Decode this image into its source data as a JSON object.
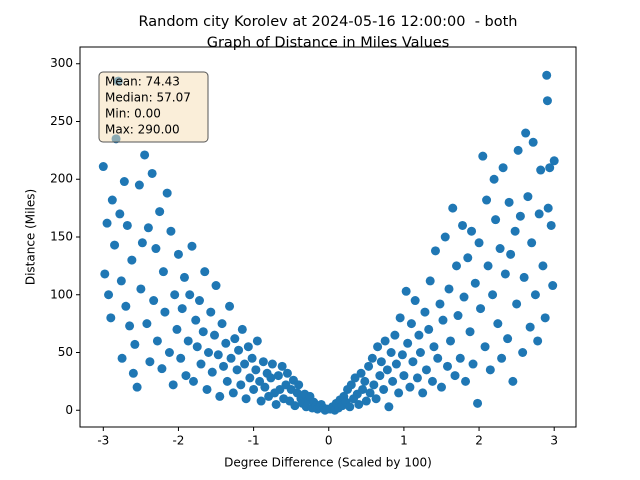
{
  "chart_data": {
    "type": "scatter",
    "title": "Random city Korolev at 2024-05-16 12:00:00  - both",
    "subtitle": "Graph of Distance in Miles Values",
    "x_label": "Degree Difference (Scaled by 100)",
    "y_label": "Distance (Miles)",
    "annotations": [
      "Mean: 74.43",
      "Median: 57.07",
      "Min: 0.00",
      "Max: 290.00"
    ],
    "color": "#1f77b4",
    "xlim": [
      -3.31,
      3.29
    ],
    "ylim": [
      -14.5,
      314.5
    ],
    "xticks": [
      -3,
      -2,
      -1,
      0,
      1,
      2,
      3
    ],
    "yticks": [
      0,
      50,
      100,
      150,
      200,
      250,
      300
    ],
    "grid": false,
    "x": [
      -3,
      -2.98,
      -2.95,
      -2.93,
      -2.9,
      -2.88,
      -2.85,
      -2.83,
      -2.8,
      -2.78,
      -2.76,
      -2.75,
      -2.72,
      -2.7,
      -2.68,
      -2.65,
      -2.62,
      -2.6,
      -2.58,
      -2.55,
      -2.52,
      -2.5,
      -2.48,
      -2.45,
      -2.42,
      -2.4,
      -2.38,
      -2.35,
      -2.33,
      -2.3,
      -2.28,
      -2.25,
      -2.22,
      -2.2,
      -2.18,
      -2.15,
      -2.12,
      -2.1,
      -2.07,
      -2.05,
      -2.02,
      -2.0,
      -1.97,
      -1.95,
      -1.92,
      -1.9,
      -1.87,
      -1.85,
      -1.82,
      -1.8,
      -1.77,
      -1.75,
      -1.72,
      -1.7,
      -1.67,
      -1.65,
      -1.62,
      -1.6,
      -1.57,
      -1.55,
      -1.52,
      -1.5,
      -1.47,
      -1.45,
      -1.42,
      -1.4,
      -1.37,
      -1.35,
      -1.32,
      -1.3,
      -1.27,
      -1.25,
      -1.22,
      -1.2,
      -1.17,
      -1.15,
      -1.12,
      -1.1,
      -1.07,
      -1.05,
      -1.02,
      -1.0,
      -0.97,
      -0.95,
      -0.92,
      -0.9,
      -0.87,
      -0.85,
      -0.82,
      -0.8,
      -0.77,
      -0.75,
      -0.72,
      -0.7,
      -0.67,
      -0.65,
      -0.62,
      -0.6,
      -0.57,
      -0.55,
      -0.52,
      -0.5,
      -0.47,
      -0.45,
      -0.42,
      -0.4,
      -0.37,
      -0.35,
      -0.32,
      -0.3,
      -0.27,
      -0.25,
      -0.22,
      -0.2,
      -0.17,
      -0.15,
      -0.12,
      -0.1,
      -0.07,
      -0.05,
      -0.02,
      0.02,
      0.05,
      0.08,
      0.1,
      0.13,
      0.15,
      0.18,
      0.2,
      0.23,
      0.25,
      0.28,
      0.3,
      0.33,
      0.35,
      0.38,
      0.4,
      0.43,
      0.45,
      0.48,
      0.5,
      0.53,
      0.55,
      0.58,
      0.6,
      0.63,
      0.65,
      0.68,
      0.7,
      0.73,
      0.75,
      0.78,
      0.8,
      0.83,
      0.85,
      0.88,
      0.9,
      0.93,
      0.95,
      0.98,
      1.0,
      1.03,
      1.05,
      1.08,
      1.1,
      1.12,
      1.15,
      1.18,
      1.2,
      1.22,
      1.25,
      1.28,
      1.3,
      1.33,
      1.35,
      1.38,
      1.4,
      1.42,
      1.45,
      1.48,
      1.5,
      1.52,
      1.55,
      1.58,
      1.6,
      1.62,
      1.65,
      1.68,
      1.7,
      1.72,
      1.75,
      1.78,
      1.8,
      1.82,
      1.85,
      1.88,
      1.9,
      1.92,
      1.95,
      1.98,
      2.0,
      2.02,
      2.05,
      2.08,
      2.1,
      2.12,
      2.15,
      2.18,
      2.2,
      2.22,
      2.25,
      2.28,
      2.3,
      2.32,
      2.35,
      2.38,
      2.4,
      2.42,
      2.45,
      2.48,
      2.5,
      2.52,
      2.55,
      2.58,
      2.6,
      2.62,
      2.65,
      2.68,
      2.7,
      2.72,
      2.75,
      2.78,
      2.8,
      2.82,
      2.85,
      2.88,
      2.9,
      2.91,
      2.92,
      2.94,
      2.96,
      2.98,
      3.0
    ],
    "y": [
      211,
      118,
      162,
      100,
      80,
      182,
      143,
      235,
      285,
      170,
      112,
      45,
      198,
      90,
      160,
      73,
      130,
      32,
      57,
      20,
      195,
      105,
      145,
      221,
      75,
      158,
      42,
      205,
      95,
      140,
      60,
      172,
      36,
      120,
      85,
      188,
      50,
      155,
      22,
      100,
      70,
      135,
      45,
      88,
      115,
      30,
      60,
      100,
      142,
      25,
      78,
      55,
      95,
      40,
      68,
      120,
      18,
      50,
      85,
      33,
      65,
      108,
      48,
      12,
      75,
      38,
      58,
      25,
      90,
      45,
      15,
      62,
      35,
      52,
      22,
      70,
      40,
      10,
      55,
      28,
      45,
      18,
      35,
      60,
      25,
      8,
      42,
      20,
      32,
      12,
      28,
      40,
      15,
      5,
      30,
      18,
      38,
      10,
      22,
      32,
      8,
      18,
      26,
      4,
      15,
      22,
      10,
      6,
      14,
      3,
      9,
      12,
      2,
      7,
      4,
      1,
      3,
      5,
      2,
      0,
      1,
      1,
      3,
      0,
      6,
      2,
      9,
      4,
      12,
      7,
      18,
      3,
      22,
      10,
      28,
      14,
      5,
      32,
      18,
      25,
      8,
      38,
      15,
      45,
      22,
      10,
      55,
      30,
      42,
      18,
      60,
      35,
      3,
      50,
      25,
      65,
      40,
      15,
      80,
      48,
      30,
      103,
      58,
      20,
      75,
      42,
      95,
      28,
      65,
      50,
      15,
      85,
      35,
      70,
      112,
      25,
      55,
      138,
      45,
      92,
      20,
      78,
      150,
      38,
      105,
      60,
      175,
      30,
      125,
      82,
      45,
      160,
      98,
      25,
      132,
      68,
      155,
      40,
      110,
      6,
      145,
      88,
      220,
      55,
      182,
      125,
      35,
      100,
      200,
      165,
      75,
      140,
      45,
      210,
      118,
      62,
      180,
      135,
      25,
      155,
      92,
      225,
      168,
      50,
      115,
      240,
      185,
      72,
      145,
      232,
      100,
      60,
      170,
      208,
      125,
      80,
      290,
      268,
      175,
      210,
      160,
      108,
      216
    ]
  }
}
